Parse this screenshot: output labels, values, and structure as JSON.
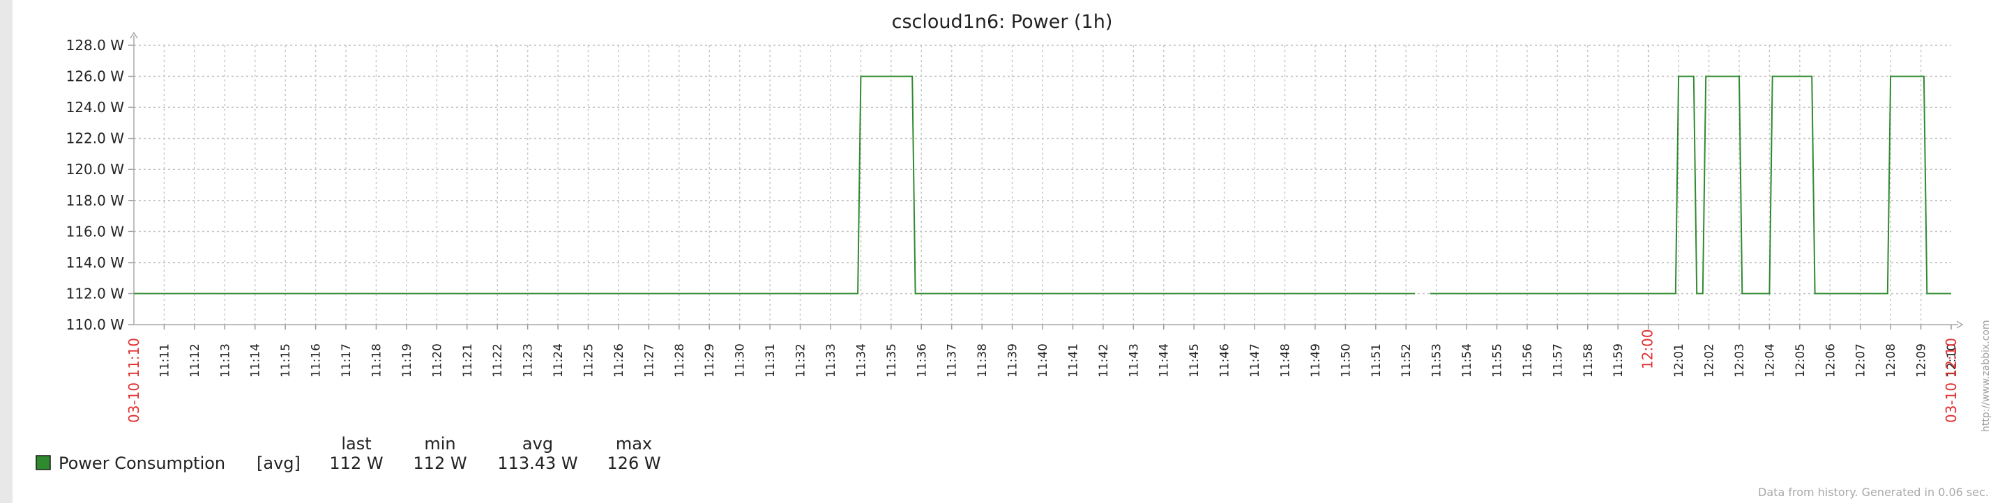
{
  "chart_data": {
    "type": "line",
    "title": "cscloud1n6: Power (1h)",
    "y_unit": "W",
    "ylim": [
      110.0,
      128.0
    ],
    "y_ticks": [
      "128.0 W",
      "126.0 W",
      "124.0 W",
      "122.0 W",
      "120.0 W",
      "118.0 W",
      "116.0 W",
      "114.0 W",
      "112.0 W",
      "110.0 W"
    ],
    "x_range": [
      "11:10",
      "12:10"
    ],
    "x_ticks": [
      "11:11",
      "11:12",
      "11:13",
      "11:14",
      "11:15",
      "11:16",
      "11:17",
      "11:18",
      "11:19",
      "11:20",
      "11:21",
      "11:22",
      "11:23",
      "11:24",
      "11:25",
      "11:26",
      "11:27",
      "11:28",
      "11:29",
      "11:30",
      "11:31",
      "11:32",
      "11:33",
      "11:34",
      "11:35",
      "11:36",
      "11:37",
      "11:38",
      "11:39",
      "11:40",
      "11:41",
      "11:42",
      "11:43",
      "11:44",
      "11:45",
      "11:46",
      "11:47",
      "11:48",
      "11:49",
      "11:50",
      "11:51",
      "11:52",
      "11:53",
      "11:54",
      "11:55",
      "11:56",
      "11:57",
      "11:58",
      "11:59",
      "12:00",
      "12:01",
      "12:02",
      "12:03",
      "12:04",
      "12:05",
      "12:06",
      "12:07",
      "12:08",
      "12:09",
      "12:10"
    ],
    "x_tick_highlight": [
      "12:00"
    ],
    "x_start_label": "03-10 11:10",
    "x_end_label": "03-10 12:10",
    "grid": true,
    "series": [
      {
        "name": "Power Consumption",
        "color": "#2f8a2f",
        "segments": [
          [
            [
              "11:10",
              112
            ],
            [
              "11:33.9",
              112
            ],
            [
              "11:34",
              126
            ],
            [
              "11:35.7",
              126
            ],
            [
              "11:35.8",
              112
            ],
            [
              "11:52.3",
              112
            ]
          ],
          [
            [
              "11:52.8",
              112
            ],
            [
              "12:00.9",
              112
            ],
            [
              "12:01.0",
              126
            ],
            [
              "12:01.5",
              126
            ],
            [
              "12:01.6",
              112
            ],
            [
              "12:01.8",
              112
            ],
            [
              "12:01.9",
              126
            ],
            [
              "12:03.0",
              126
            ],
            [
              "12:03.1",
              112
            ],
            [
              "12:04.0",
              112
            ],
            [
              "12:04.1",
              126
            ],
            [
              "12:05.4",
              126
            ],
            [
              "12:05.5",
              112
            ],
            [
              "12:07.9",
              112
            ],
            [
              "12:08.0",
              126
            ],
            [
              "12:09.1",
              126
            ],
            [
              "12:09.2",
              112
            ],
            [
              "12:10",
              112
            ]
          ]
        ]
      }
    ]
  },
  "legend": {
    "header_last": "last",
    "header_min": "min",
    "header_avg": "avg",
    "header_max": "max",
    "items": [
      {
        "name": "Power Consumption",
        "func": "[avg]",
        "last": "112 W",
        "min": "112 W",
        "avg": "113.43 W",
        "max": "126 W",
        "color": "#2f8a2f"
      }
    ]
  },
  "side_text": "http://www.zabbix.com",
  "footer": "Data from history. Generated in 0.06 sec."
}
